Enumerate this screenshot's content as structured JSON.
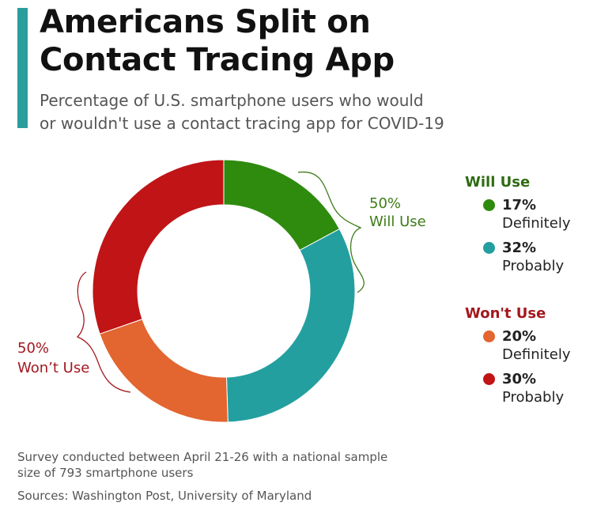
{
  "header": {
    "title_line1": "Americans Split on",
    "title_line2": "Contact Tracing App",
    "subtitle_line1": "Percentage of U.S. smartphone users who would",
    "subtitle_line2": "or wouldn't use a contact tracing app for COVID-19"
  },
  "chart_data": {
    "type": "pie",
    "donut": true,
    "title": "Americans Split on Contact Tracing App",
    "subtitle": "Percentage of U.S. smartphone users who would or wouldn't use a contact tracing app for COVID-19",
    "slices": [
      {
        "group": "Will Use",
        "label": "Definitely",
        "value": 17,
        "display": "17%",
        "color": "#2e8b0e"
      },
      {
        "group": "Will Use",
        "label": "Probably",
        "value": 32,
        "display": "32%",
        "color": "#249fa0"
      },
      {
        "group": "Won't Use",
        "label": "Definitely",
        "value": 20,
        "display": "20%",
        "color": "#e3652f"
      },
      {
        "group": "Won't Use",
        "label": "Probably",
        "value": 30,
        "display": "30%",
        "color": "#c01416"
      }
    ],
    "group_annotations": [
      {
        "value": "50%",
        "label": "Will Use",
        "color": "#3d7d17"
      },
      {
        "value": "50%",
        "label": "Won’t Use",
        "color": "#a3181e"
      }
    ]
  },
  "legend": {
    "groups": [
      {
        "heading": "Will Use",
        "color": "#2e6b12",
        "items": [
          {
            "value": "17%",
            "label": "Definitely",
            "color": "#2e8b0e"
          },
          {
            "value": "32%",
            "label": "Probably",
            "color": "#249fa0"
          }
        ]
      },
      {
        "heading": "Won't Use",
        "color": "#a3181e",
        "items": [
          {
            "value": "20%",
            "label": "Definitely",
            "color": "#e3652f"
          },
          {
            "value": "30%",
            "label": "Probably",
            "color": "#c01416"
          }
        ]
      }
    ]
  },
  "footer": {
    "survey_line1": "Survey conducted between April 21-26 with a national sample",
    "survey_line2": "size of 793 smartphone users",
    "sources": "Sources: Washington Post, University of Maryland"
  }
}
